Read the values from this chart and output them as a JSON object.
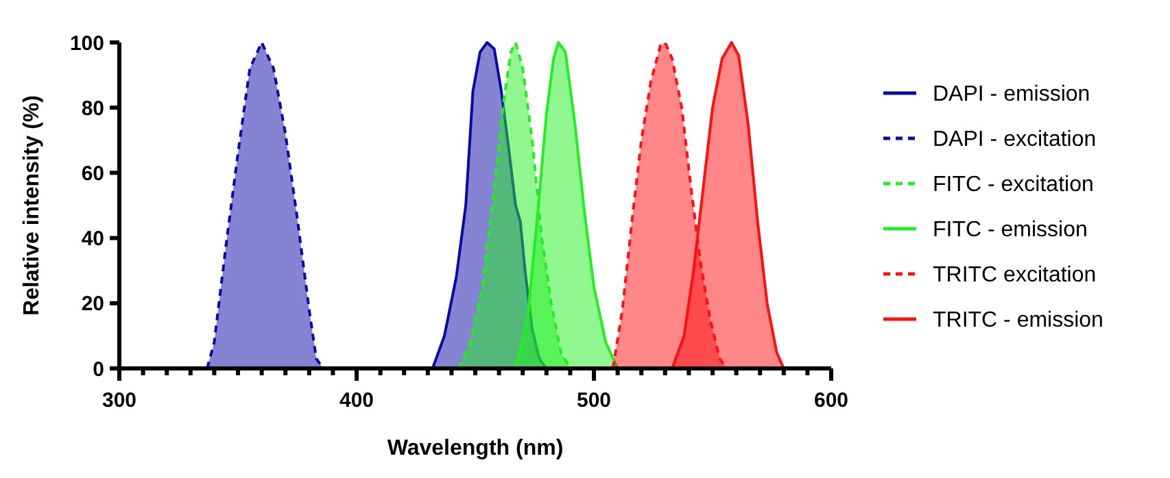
{
  "chart_data": {
    "type": "area",
    "xlabel": "Wavelength (nm)",
    "ylabel": "Relative intensity (%)",
    "xlim": [
      300,
      600
    ],
    "xticks": [
      300,
      400,
      500,
      600
    ],
    "ylim": [
      0,
      100
    ],
    "yticks": [
      0,
      20,
      40,
      60,
      80,
      100
    ],
    "legend": "right",
    "grid": false,
    "series": [
      {
        "name": "DAPI - emission",
        "color": "#0a0aa8",
        "line_style": "solid",
        "x": [
          432,
          437,
          442,
          446,
          449,
          452,
          455,
          458,
          461,
          464,
          467,
          469,
          471,
          474,
          477,
          480
        ],
        "values": [
          0,
          10,
          28,
          50,
          85,
          97,
          100,
          98,
          85,
          68,
          50,
          45,
          30,
          12,
          3,
          0
        ]
      },
      {
        "name": "DAPI - excitation",
        "color": "#0a0aa8",
        "line_style": "dashed",
        "x": [
          337,
          340,
          345,
          350,
          355,
          360,
          365,
          370,
          375,
          380,
          383,
          386
        ],
        "values": [
          0,
          8,
          38,
          66,
          92,
          100,
          92,
          72,
          46,
          18,
          3,
          0
        ]
      },
      {
        "name": "FITC - excitation",
        "color": "#22ee22",
        "line_style": "dashed",
        "x": [
          443,
          448,
          453,
          458,
          462,
          465,
          467,
          470,
          474,
          478,
          482,
          486,
          490
        ],
        "values": [
          0,
          8,
          25,
          55,
          82,
          97,
          100,
          92,
          70,
          40,
          20,
          5,
          0
        ]
      },
      {
        "name": "FITC - emission",
        "color": "#22ee22",
        "line_style": "solid",
        "x": [
          467,
          472,
          476,
          480,
          483,
          485,
          488,
          492,
          496,
          500,
          505,
          510
        ],
        "values": [
          0,
          15,
          45,
          78,
          95,
          100,
          97,
          75,
          48,
          25,
          8,
          0
        ]
      },
      {
        "name": "TRITC excitation",
        "color": "#ff1010",
        "line_style": "dashed",
        "x": [
          508,
          512,
          516,
          520,
          524,
          528,
          530,
          533,
          537,
          541,
          545,
          549,
          553,
          556
        ],
        "values": [
          0,
          18,
          45,
          70,
          88,
          99,
          100,
          95,
          80,
          55,
          32,
          15,
          3,
          0
        ]
      },
      {
        "name": "TRITC - emission",
        "color": "#ff1010",
        "line_style": "solid",
        "x": [
          533,
          538,
          542,
          546,
          550,
          554,
          558,
          561,
          565,
          569,
          573,
          577,
          580
        ],
        "values": [
          0,
          10,
          30,
          55,
          80,
          95,
          100,
          96,
          75,
          45,
          20,
          5,
          0
        ]
      }
    ]
  }
}
